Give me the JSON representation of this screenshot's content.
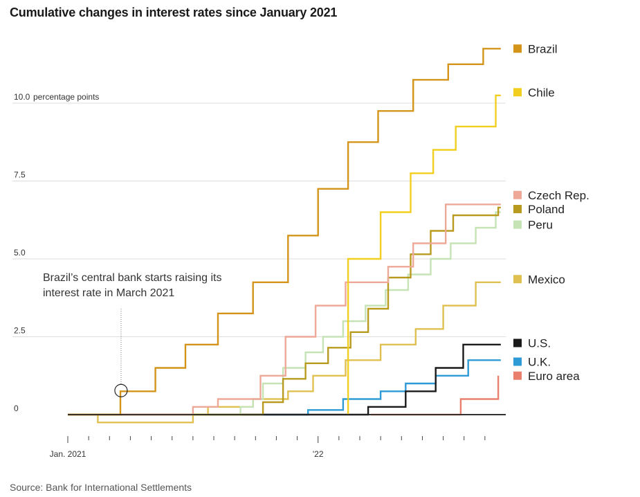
{
  "header": {
    "title": "Cumulative changes in interest rates since January 2021"
  },
  "footer": {
    "source": "Source: Bank for International Settlements"
  },
  "chart_data": {
    "type": "line",
    "title": "Cumulative changes in interest rates since January 2021",
    "ylabel": "percentage points",
    "ylim": [
      -0.5,
      12
    ],
    "xlim": [
      2021.0,
      2022.75
    ],
    "yticks": [
      {
        "value": 0,
        "label": "0"
      },
      {
        "value": 2.5,
        "label": "2.5"
      },
      {
        "value": 5,
        "label": "5.0"
      },
      {
        "value": 7.5,
        "label": "7.5"
      },
      {
        "value": 10,
        "label": "10.0",
        "unit": "percentage points"
      }
    ],
    "xticks": [
      {
        "value": 2021.0,
        "label": "Jan. 2021"
      },
      {
        "value": 2022.0,
        "label": "'22"
      }
    ],
    "grid": true,
    "step": true,
    "legend_position": "right",
    "annotation": {
      "text_lines": [
        "Brazil’s central bank starts raising its",
        "interest rate in March 2021"
      ],
      "x": 2021.21,
      "y": 0.75
    },
    "series": [
      {
        "name": "Brazil",
        "color": "#d4941a",
        "points": [
          [
            2021.0,
            0
          ],
          [
            2021.21,
            0
          ],
          [
            2021.21,
            0.75
          ],
          [
            2021.35,
            0.75
          ],
          [
            2021.35,
            1.5
          ],
          [
            2021.47,
            1.5
          ],
          [
            2021.47,
            2.25
          ],
          [
            2021.6,
            2.25
          ],
          [
            2021.6,
            3.25
          ],
          [
            2021.74,
            3.25
          ],
          [
            2021.74,
            4.25
          ],
          [
            2021.88,
            4.25
          ],
          [
            2021.88,
            5.75
          ],
          [
            2022.0,
            5.75
          ],
          [
            2022.0,
            7.25
          ],
          [
            2022.12,
            7.25
          ],
          [
            2022.12,
            8.75
          ],
          [
            2022.24,
            8.75
          ],
          [
            2022.24,
            9.75
          ],
          [
            2022.38,
            9.75
          ],
          [
            2022.38,
            10.75
          ],
          [
            2022.52,
            10.75
          ],
          [
            2022.52,
            11.25
          ],
          [
            2022.66,
            11.25
          ],
          [
            2022.66,
            11.75
          ],
          [
            2022.73,
            11.75
          ]
        ]
      },
      {
        "name": "Chile",
        "color": "#f2cf1f",
        "points": [
          [
            2022.12,
            0
          ],
          [
            2022.12,
            5.0
          ],
          [
            2022.25,
            5.0
          ],
          [
            2022.25,
            6.5
          ],
          [
            2022.37,
            6.5
          ],
          [
            2022.37,
            7.75
          ],
          [
            2022.46,
            7.75
          ],
          [
            2022.46,
            8.5
          ],
          [
            2022.55,
            8.5
          ],
          [
            2022.55,
            9.25
          ],
          [
            2022.71,
            9.25
          ],
          [
            2022.71,
            10.25
          ],
          [
            2022.73,
            10.25
          ]
        ]
      },
      {
        "name": "Czech Rep.",
        "color": "#eda898",
        "points": [
          [
            2021.0,
            0
          ],
          [
            2021.5,
            0
          ],
          [
            2021.5,
            0.25
          ],
          [
            2021.6,
            0.25
          ],
          [
            2021.6,
            0.5
          ],
          [
            2021.77,
            0.5
          ],
          [
            2021.77,
            1.25
          ],
          [
            2021.87,
            1.25
          ],
          [
            2021.87,
            2.5
          ],
          [
            2021.99,
            2.5
          ],
          [
            2021.99,
            3.5
          ],
          [
            2022.11,
            3.5
          ],
          [
            2022.11,
            4.25
          ],
          [
            2022.28,
            4.25
          ],
          [
            2022.28,
            4.75
          ],
          [
            2022.38,
            4.75
          ],
          [
            2022.38,
            5.5
          ],
          [
            2022.51,
            5.5
          ],
          [
            2022.51,
            6.75
          ],
          [
            2022.73,
            6.75
          ]
        ]
      },
      {
        "name": "Poland",
        "color": "#b89b1e",
        "points": [
          [
            2021.0,
            0
          ],
          [
            2021.78,
            0
          ],
          [
            2021.78,
            0.4
          ],
          [
            2021.86,
            0.4
          ],
          [
            2021.86,
            1.15
          ],
          [
            2021.95,
            1.15
          ],
          [
            2021.95,
            1.65
          ],
          [
            2022.04,
            1.65
          ],
          [
            2022.04,
            2.15
          ],
          [
            2022.13,
            2.15
          ],
          [
            2022.13,
            2.65
          ],
          [
            2022.2,
            2.65
          ],
          [
            2022.2,
            3.4
          ],
          [
            2022.28,
            3.4
          ],
          [
            2022.28,
            4.4
          ],
          [
            2022.37,
            4.4
          ],
          [
            2022.37,
            5.15
          ],
          [
            2022.45,
            5.15
          ],
          [
            2022.45,
            5.9
          ],
          [
            2022.54,
            5.9
          ],
          [
            2022.54,
            6.4
          ],
          [
            2022.72,
            6.4
          ],
          [
            2022.72,
            6.65
          ],
          [
            2022.73,
            6.65
          ]
        ]
      },
      {
        "name": "Peru",
        "color": "#c6e3b5",
        "points": [
          [
            2021.0,
            0
          ],
          [
            2021.69,
            0
          ],
          [
            2021.69,
            0.25
          ],
          [
            2021.74,
            0.25
          ],
          [
            2021.74,
            0.5
          ],
          [
            2021.78,
            0.5
          ],
          [
            2021.78,
            1.0
          ],
          [
            2021.86,
            1.0
          ],
          [
            2021.86,
            1.5
          ],
          [
            2021.95,
            1.5
          ],
          [
            2021.95,
            2.0
          ],
          [
            2022.02,
            2.0
          ],
          [
            2022.02,
            2.5
          ],
          [
            2022.1,
            2.5
          ],
          [
            2022.1,
            3.0
          ],
          [
            2022.19,
            3.0
          ],
          [
            2022.19,
            3.5
          ],
          [
            2022.27,
            3.5
          ],
          [
            2022.27,
            4.0
          ],
          [
            2022.36,
            4.0
          ],
          [
            2022.36,
            4.5
          ],
          [
            2022.45,
            4.5
          ],
          [
            2022.45,
            5.0
          ],
          [
            2022.53,
            5.0
          ],
          [
            2022.53,
            5.5
          ],
          [
            2022.63,
            5.5
          ],
          [
            2022.63,
            6.0
          ],
          [
            2022.71,
            6.0
          ],
          [
            2022.71,
            6.5
          ],
          [
            2022.73,
            6.5
          ]
        ]
      },
      {
        "name": "Mexico",
        "color": "#e0c050",
        "points": [
          [
            2021.0,
            0
          ],
          [
            2021.12,
            0
          ],
          [
            2021.12,
            -0.25
          ],
          [
            2021.5,
            -0.25
          ],
          [
            2021.5,
            0
          ],
          [
            2021.56,
            0
          ],
          [
            2021.56,
            0.25
          ],
          [
            2021.74,
            0.25
          ],
          [
            2021.74,
            0.5
          ],
          [
            2021.88,
            0.5
          ],
          [
            2021.88,
            0.75
          ],
          [
            2021.98,
            0.75
          ],
          [
            2021.98,
            1.25
          ],
          [
            2022.11,
            1.25
          ],
          [
            2022.11,
            1.75
          ],
          [
            2022.25,
            1.75
          ],
          [
            2022.25,
            2.25
          ],
          [
            2022.39,
            2.25
          ],
          [
            2022.39,
            2.75
          ],
          [
            2022.5,
            2.75
          ],
          [
            2022.5,
            3.5
          ],
          [
            2022.63,
            3.5
          ],
          [
            2022.63,
            4.25
          ],
          [
            2022.73,
            4.25
          ]
        ]
      },
      {
        "name": "U.S.",
        "color": "#1a1a1a",
        "points": [
          [
            2021.0,
            0
          ],
          [
            2022.2,
            0
          ],
          [
            2022.2,
            0.25
          ],
          [
            2022.35,
            0.25
          ],
          [
            2022.35,
            0.75
          ],
          [
            2022.47,
            0.75
          ],
          [
            2022.47,
            1.5
          ],
          [
            2022.58,
            1.5
          ],
          [
            2022.58,
            2.25
          ],
          [
            2022.73,
            2.25
          ]
        ]
      },
      {
        "name": "U.K.",
        "color": "#2e9bd6",
        "points": [
          [
            2021.0,
            0
          ],
          [
            2021.96,
            0
          ],
          [
            2021.96,
            0.15
          ],
          [
            2022.1,
            0.15
          ],
          [
            2022.1,
            0.5
          ],
          [
            2022.25,
            0.5
          ],
          [
            2022.25,
            0.75
          ],
          [
            2022.35,
            0.75
          ],
          [
            2022.35,
            1.0
          ],
          [
            2022.47,
            1.0
          ],
          [
            2022.47,
            1.25
          ],
          [
            2022.6,
            1.25
          ],
          [
            2022.6,
            1.75
          ],
          [
            2022.73,
            1.75
          ]
        ]
      },
      {
        "name": "Euro area",
        "color": "#e8806d",
        "points": [
          [
            2022.21,
            0
          ],
          [
            2022.57,
            0
          ],
          [
            2022.57,
            0.5
          ],
          [
            2022.72,
            0.5
          ],
          [
            2022.72,
            1.25
          ]
        ]
      }
    ],
    "legend": [
      {
        "name": "Brazil",
        "color": "#d4941a",
        "y": 11.75
      },
      {
        "name": "Chile",
        "color": "#f2cf1f",
        "y": 10.35
      },
      {
        "name": "Czech Rep.",
        "color": "#eda898",
        "y": 7.05
      },
      {
        "name": "Poland",
        "color": "#b89b1e",
        "y": 6.6
      },
      {
        "name": "Peru",
        "color": "#c6e3b5",
        "y": 6.1
      },
      {
        "name": "Mexico",
        "color": "#e0c050",
        "y": 4.35
      },
      {
        "name": "U.S.",
        "color": "#1a1a1a",
        "y": 2.3
      },
      {
        "name": "U.K.",
        "color": "#2e9bd6",
        "y": 1.7
      },
      {
        "name": "Euro area",
        "color": "#e8806d",
        "y": 1.25
      }
    ]
  }
}
